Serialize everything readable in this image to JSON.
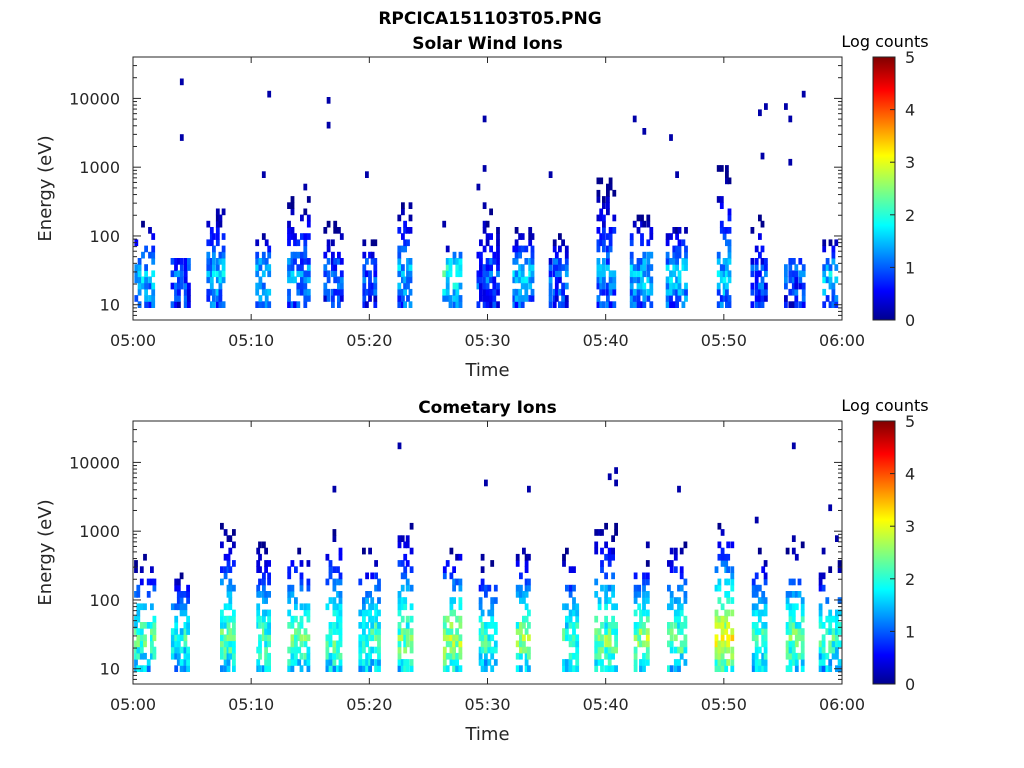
{
  "figure": {
    "title": "RPCICA151103T05.PNG"
  },
  "chart_data": [
    {
      "type": "heatmap",
      "title": "Solar Wind Ions",
      "xlabel": "Time",
      "ylabel": "Energy (eV)",
      "xlim": [
        "05:00",
        "06:00"
      ],
      "xticks": [
        "05:00",
        "05:10",
        "05:20",
        "05:30",
        "05:40",
        "05:50",
        "06:00"
      ],
      "yscale": "log",
      "ylim": [
        6,
        40000
      ],
      "yticks": [
        "10",
        "100",
        "1000",
        "10000"
      ],
      "colorbar": {
        "label": "Log counts",
        "min": 0,
        "max": 5,
        "ticks": [
          "0",
          "1",
          "2",
          "3",
          "4",
          "5"
        ],
        "colormap": "jet"
      },
      "bursts": [
        {
          "t": "05:01",
          "peak": 2.0,
          "emax": 200
        },
        {
          "t": "05:04",
          "peak": 1.5,
          "emax": 45
        },
        {
          "t": "05:07",
          "peak": 2.0,
          "emax": 300
        },
        {
          "t": "05:11",
          "peak": 2.0,
          "emax": 120
        },
        {
          "t": "05:14",
          "peak": 1.8,
          "emax": 500
        },
        {
          "t": "05:17",
          "peak": 1.5,
          "emax": 200
        },
        {
          "t": "05:20",
          "peak": 1.5,
          "emax": 100
        },
        {
          "t": "05:23",
          "peak": 2.0,
          "emax": 400
        },
        {
          "t": "05:27",
          "peak": 2.5,
          "emax": 80
        },
        {
          "t": "05:30",
          "peak": 1.5,
          "emax": 300
        },
        {
          "t": "05:33",
          "peak": 2.0,
          "emax": 150
        },
        {
          "t": "05:36",
          "peak": 1.5,
          "emax": 120
        },
        {
          "t": "05:40",
          "peak": 1.8,
          "emax": 800
        },
        {
          "t": "05:43",
          "peak": 2.0,
          "emax": 250
        },
        {
          "t": "05:46",
          "peak": 2.0,
          "emax": 180
        },
        {
          "t": "05:50",
          "peak": 2.0,
          "emax": 1200
        },
        {
          "t": "05:53",
          "peak": 1.5,
          "emax": 300
        },
        {
          "t": "05:56",
          "peak": 1.5,
          "emax": 45
        },
        {
          "t": "05:59",
          "peak": 2.0,
          "emax": 100
        }
      ]
    },
    {
      "type": "heatmap",
      "title": "Cometary Ions",
      "xlabel": "Time",
      "ylabel": "Energy (eV)",
      "xlim": [
        "05:00",
        "06:00"
      ],
      "xticks": [
        "05:00",
        "05:10",
        "05:20",
        "05:30",
        "05:40",
        "05:50",
        "06:00"
      ],
      "yscale": "log",
      "ylim": [
        6,
        40000
      ],
      "yticks": [
        "10",
        "100",
        "1000",
        "10000"
      ],
      "colorbar": {
        "label": "Log counts",
        "min": 0,
        "max": 5,
        "ticks": [
          "0",
          "1",
          "2",
          "3",
          "4",
          "5"
        ],
        "colormap": "jet"
      },
      "bursts": [
        {
          "t": "05:01",
          "peak": 2.7,
          "emax": 500
        },
        {
          "t": "05:04",
          "peak": 2.5,
          "emax": 300
        },
        {
          "t": "05:08",
          "peak": 2.8,
          "emax": 1500
        },
        {
          "t": "05:11",
          "peak": 2.7,
          "emax": 800
        },
        {
          "t": "05:14",
          "peak": 2.8,
          "emax": 800
        },
        {
          "t": "05:17",
          "peak": 2.8,
          "emax": 1200
        },
        {
          "t": "05:20",
          "peak": 2.7,
          "emax": 700
        },
        {
          "t": "05:23",
          "peak": 2.9,
          "emax": 1500
        },
        {
          "t": "05:27",
          "peak": 3.2,
          "emax": 800
        },
        {
          "t": "05:30",
          "peak": 2.6,
          "emax": 500
        },
        {
          "t": "05:33",
          "peak": 3.0,
          "emax": 700
        },
        {
          "t": "05:37",
          "peak": 2.7,
          "emax": 600
        },
        {
          "t": "05:40",
          "peak": 2.9,
          "emax": 1500
        },
        {
          "t": "05:43",
          "peak": 3.1,
          "emax": 500
        },
        {
          "t": "05:46",
          "peak": 2.8,
          "emax": 900
        },
        {
          "t": "05:50",
          "peak": 3.5,
          "emax": 1500
        },
        {
          "t": "05:53",
          "peak": 2.7,
          "emax": 600
        },
        {
          "t": "05:56",
          "peak": 2.9,
          "emax": 800
        },
        {
          "t": "05:59",
          "peak": 2.6,
          "emax": 400
        }
      ]
    }
  ]
}
